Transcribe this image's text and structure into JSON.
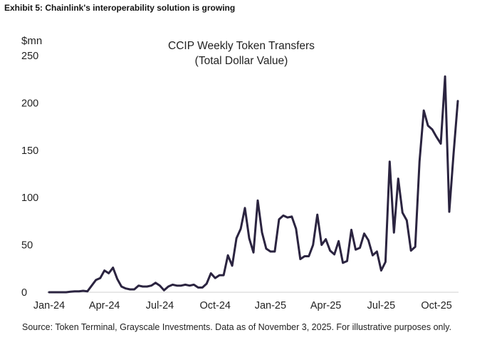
{
  "exhibit_title": "Exhibit 5: Chainlink's interoperability solution is growing",
  "source_note": "Source: Token Terminal, Grayscale Investments. Data as of November 3, 2025. For illustrative purposes only.",
  "colors": {
    "line": "#2b2440",
    "axis": "#cfcfcf",
    "text": "#1a1a2e"
  },
  "chart_data": {
    "type": "line",
    "title": "CCIP Weekly Token Transfers",
    "subtitle": "(Total Dollar Value)",
    "ylabel": "$mn",
    "xlabel": "",
    "ylim": [
      0,
      250
    ],
    "yticks": [
      0,
      50,
      100,
      150,
      200,
      250
    ],
    "x_tick_labels": [
      "Jan-24",
      "Apr-24",
      "Jul-24",
      "Oct-24",
      "Jan-25",
      "Apr-25",
      "Jul-25",
      "Oct-25"
    ],
    "x_tick_weeks": [
      0,
      13,
      26,
      39,
      52,
      65,
      78,
      91
    ],
    "grid": false,
    "series": [
      {
        "name": "CCIP Weekly Token Transfers",
        "values": [
          0,
          0,
          0,
          0,
          0,
          0.5,
          1,
          1,
          1.5,
          1,
          7,
          13,
          15,
          23,
          20,
          26,
          14,
          6,
          4,
          3,
          3,
          7,
          6,
          6,
          7,
          10,
          7,
          2,
          6,
          8,
          7,
          7,
          8,
          7,
          8,
          5,
          5,
          9,
          20,
          15,
          18,
          18,
          39,
          28,
          57,
          67,
          89,
          57,
          42,
          97,
          63,
          46,
          43,
          43,
          77,
          81,
          79,
          80,
          67,
          35,
          38,
          38,
          50,
          82,
          50,
          56,
          44,
          40,
          54,
          31,
          33,
          66,
          45,
          47,
          62,
          55,
          39,
          43,
          23,
          32,
          138,
          63,
          120,
          84,
          76,
          44,
          48,
          138,
          192,
          176,
          172,
          164,
          157,
          228,
          85,
          146,
          202
        ]
      }
    ]
  }
}
